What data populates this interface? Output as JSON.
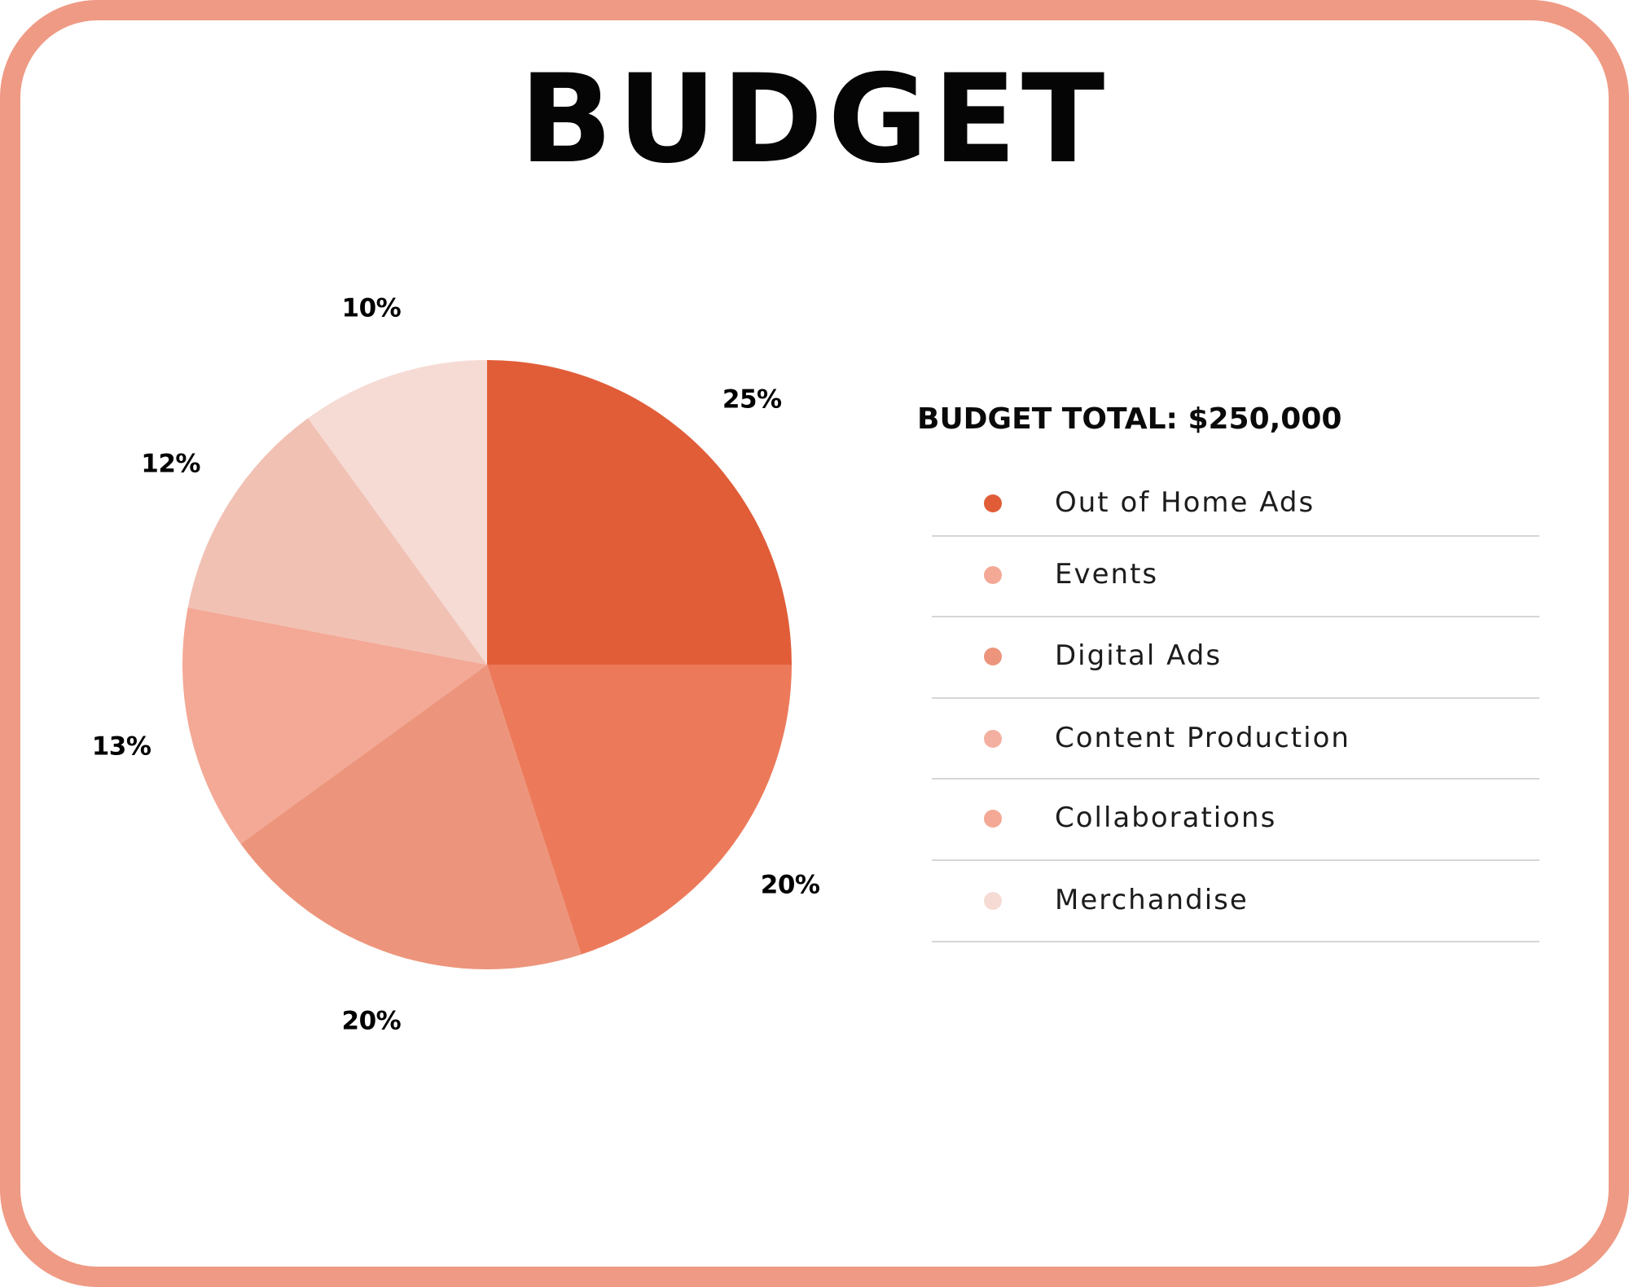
{
  "page": {
    "title": "BUDGET"
  },
  "chart_data": {
    "type": "pie",
    "title": "BUDGET",
    "total_label": "BUDGET TOTAL: $250,000",
    "categories": [
      "Out of Home Ads",
      "Events",
      "Digital Ads",
      "Content Production",
      "Collaborations",
      "Merchandise"
    ],
    "values": [
      25,
      20,
      20,
      13,
      12,
      10
    ],
    "value_labels": [
      "25%",
      "20%",
      "20%",
      "13%",
      "12%",
      "10%"
    ],
    "unit": "%",
    "start_angle": "12 o'clock",
    "direction": "clockwise",
    "legend_position": "right",
    "colors": {
      "slices": [
        "#e05d38",
        "#ec7a5a",
        "#ec957c",
        "#f3a995",
        "#f1c1b4",
        "#f6dbd4"
      ],
      "legend_dots": [
        "#e05d38",
        "#f3a995",
        "#ec957c",
        "#f3b0a0",
        "#f3a995",
        "#f6dbd4"
      ],
      "frame": "#ef9a84",
      "rule": "#d6d6d6"
    }
  }
}
